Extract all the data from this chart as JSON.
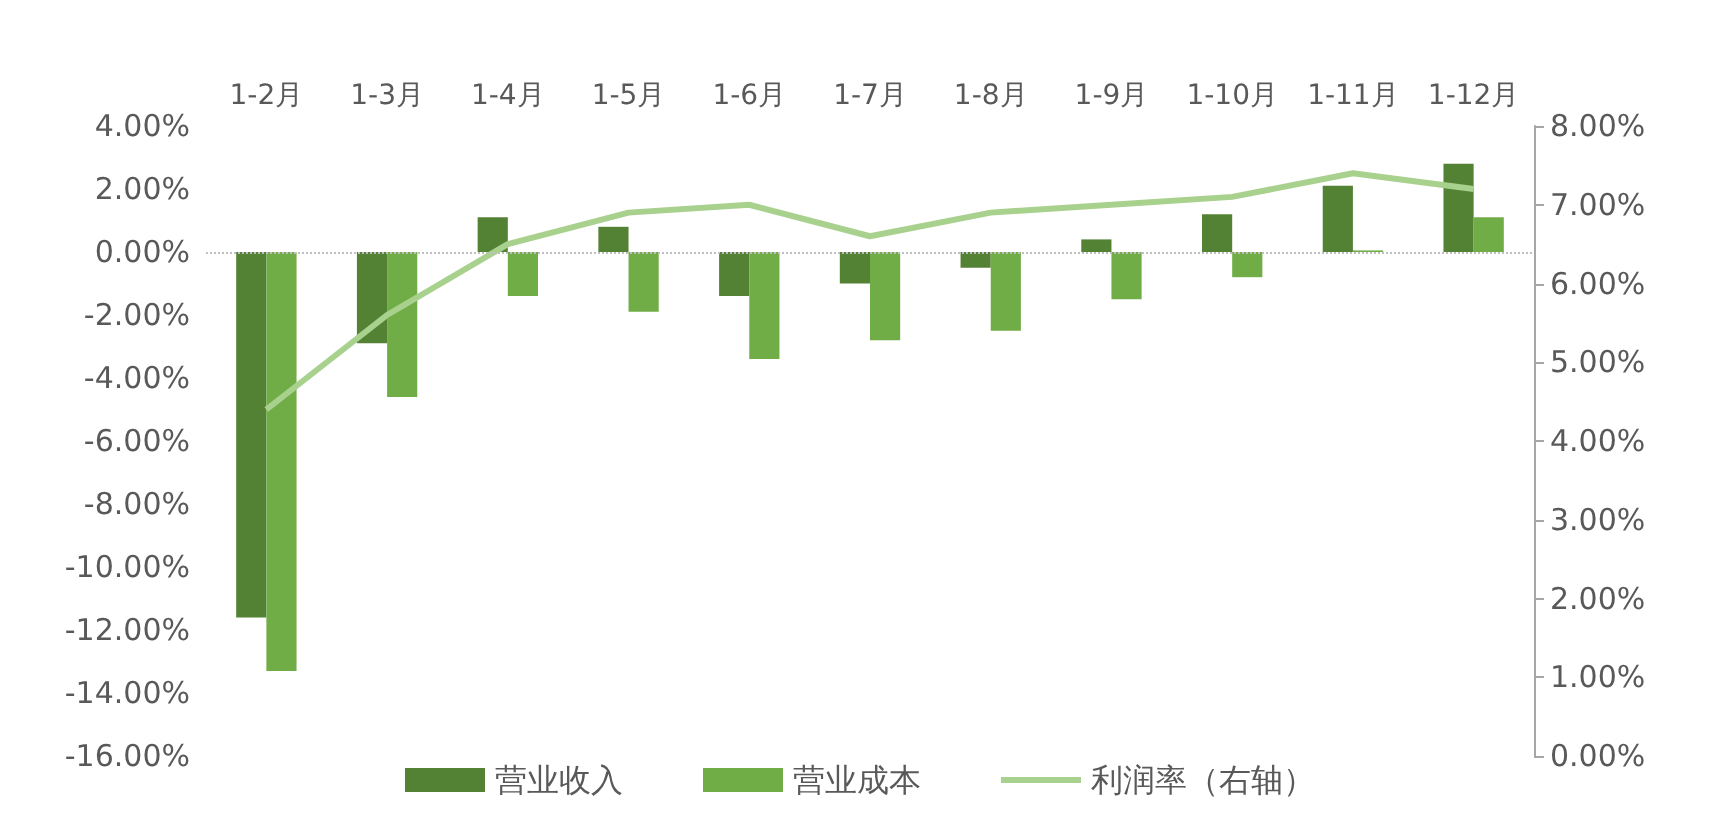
{
  "chart_data": {
    "type": "bar",
    "categories": [
      "1-2月",
      "1-3月",
      "1-4月",
      "1-5月",
      "1-6月",
      "1-7月",
      "1-8月",
      "1-9月",
      "1-10月",
      "1-11月",
      "1-12月"
    ],
    "series": [
      {
        "name": "营业收入",
        "color": "#548235",
        "values": [
          -11.6,
          -2.9,
          1.1,
          0.8,
          -1.4,
          -1.0,
          -0.5,
          0.4,
          1.2,
          2.1,
          2.8
        ]
      },
      {
        "name": "营业成本",
        "color": "#70ad47",
        "values": [
          -13.3,
          -4.6,
          -1.4,
          -1.9,
          -3.4,
          -2.8,
          -2.5,
          -1.5,
          -0.8,
          0.05,
          1.1
        ]
      },
      {
        "name": "利润率（右轴）",
        "type": "line",
        "axis": "y2",
        "color": "#a9d18e",
        "marker": "none",
        "values": [
          4.4,
          5.6,
          6.5,
          6.9,
          7.0,
          6.6,
          6.9,
          7.0,
          7.1,
          7.4,
          7.2
        ]
      }
    ],
    "ylim": [
      -16,
      4
    ],
    "yticks": [
      {
        "value": -16,
        "label": "-16.00%"
      },
      {
        "value": -14,
        "label": "-14.00%"
      },
      {
        "value": -12,
        "label": "-12.00%"
      },
      {
        "value": -10,
        "label": "-10.00%"
      },
      {
        "value": -8,
        "label": "-8.00%"
      },
      {
        "value": -6,
        "label": "-6.00%"
      },
      {
        "value": -4,
        "label": "-4.00%"
      },
      {
        "value": -2,
        "label": "-2.00%"
      },
      {
        "value": 0,
        "label": "0.00%"
      },
      {
        "value": 2,
        "label": "2.00%"
      },
      {
        "value": 4,
        "label": "4.00%"
      }
    ],
    "y2lim": [
      0,
      8
    ],
    "y2ticks": [
      {
        "value": 0,
        "label": "0.00%"
      },
      {
        "value": 1,
        "label": "1.00%"
      },
      {
        "value": 2,
        "label": "2.00%"
      },
      {
        "value": 3,
        "label": "3.00%"
      },
      {
        "value": 4,
        "label": "4.00%"
      },
      {
        "value": 5,
        "label": "5.00%"
      },
      {
        "value": 6,
        "label": "6.00%"
      },
      {
        "value": 7,
        "label": "7.00%"
      },
      {
        "value": 8,
        "label": "8.00%"
      }
    ],
    "ref_lines": [
      {
        "axis": "y",
        "value": 0,
        "color": "#bfbfbf",
        "line_style": "dotted"
      }
    ],
    "grid": false,
    "legend": "bottom"
  }
}
